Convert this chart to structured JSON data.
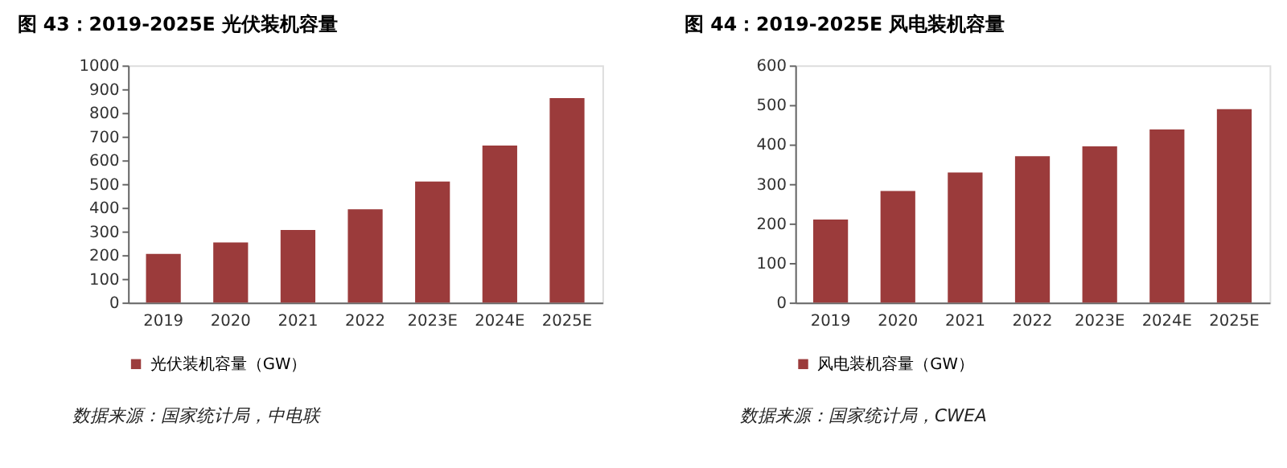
{
  "chart_data": [
    {
      "type": "bar",
      "title": "图 43：2019-2025E 光伏装机容量",
      "categories": [
        "2019",
        "2020",
        "2021",
        "2022",
        "2023E",
        "2024E",
        "2025E"
      ],
      "series": [
        {
          "name": "光伏装机容量（GW）",
          "color": "#9b3b3b",
          "values": [
            205,
            253,
            306,
            393,
            510,
            662,
            862
          ]
        }
      ],
      "ylim": [
        0,
        1000
      ],
      "yticks": [
        0,
        100,
        200,
        300,
        400,
        500,
        600,
        700,
        800,
        900,
        1000
      ],
      "grid": false,
      "legend": "bottom",
      "annotations": [
        "数据来源：国家统计局，中电联"
      ]
    },
    {
      "type": "bar",
      "title": "图 44：2019-2025E 风电装机容量",
      "categories": [
        "2019",
        "2020",
        "2021",
        "2022",
        "2023E",
        "2024E",
        "2025E"
      ],
      "series": [
        {
          "name": "风电装机容量（GW）",
          "color": "#9b3b3b",
          "values": [
            210,
            282,
            329,
            370,
            395,
            438,
            489
          ]
        }
      ],
      "ylim": [
        0,
        600
      ],
      "yticks": [
        0,
        100,
        200,
        300,
        400,
        500,
        600
      ],
      "grid": false,
      "legend": "bottom",
      "annotations": [
        "数据来源：国家统计局，CWEA"
      ]
    }
  ]
}
